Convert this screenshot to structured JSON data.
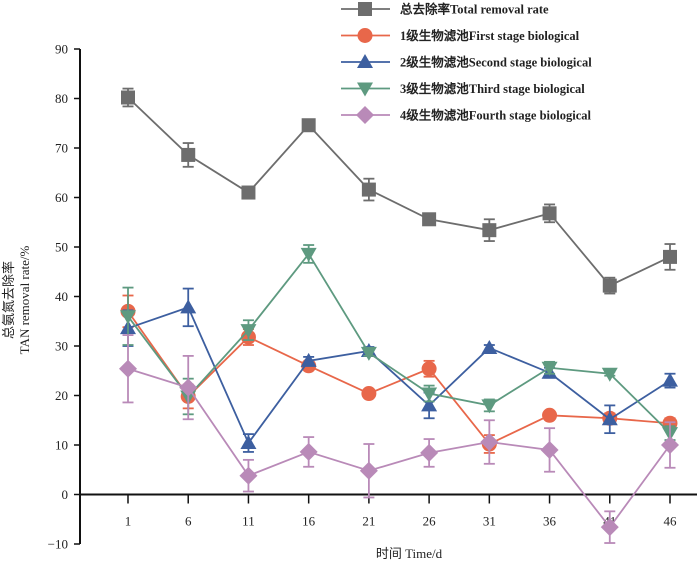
{
  "chart_data": {
    "type": "line",
    "title": "",
    "xlabel": "时间 Time/d",
    "ylabel_line1": "总氨氮去除率",
    "ylabel_line2": "TAN removal rate/%",
    "x": [
      1,
      6,
      11,
      16,
      21,
      26,
      31,
      36,
      41,
      46
    ],
    "x_tick_labels": [
      "1",
      "6",
      "11",
      "16",
      "21",
      "26",
      "31",
      "36",
      "41",
      "46"
    ],
    "ylim": [
      -10,
      90
    ],
    "y_ticks": [
      -10,
      0,
      10,
      20,
      30,
      40,
      50,
      60,
      70,
      80,
      90
    ],
    "grid": false,
    "legend_position": "top-right",
    "series": [
      {
        "name": "总去除率Total removal rate",
        "color": "#6d6d6d",
        "marker": "square",
        "values": [
          80.2,
          68.6,
          61.0,
          74.6,
          61.6,
          55.6,
          53.4,
          56.8,
          42.2,
          48.0
        ],
        "errors": [
          1.8,
          2.4,
          1.2,
          0.6,
          2.2,
          1.0,
          2.2,
          1.8,
          1.6,
          2.6
        ]
      },
      {
        "name": "1级生物滤池First stage biological",
        "color": "#e8674a",
        "marker": "circle",
        "values": [
          37.0,
          19.8,
          31.8,
          26.0,
          20.4,
          25.4,
          10.2,
          16.0,
          15.4,
          14.4
        ],
        "errors": [
          3.2,
          2.4,
          1.6,
          0.6,
          0.8,
          1.6,
          1.8,
          0.4,
          1.0,
          1.0
        ]
      },
      {
        "name": "2级生物滤池Second stage biological",
        "color": "#3d5fa0",
        "marker": "triangle-up",
        "values": [
          33.6,
          37.8,
          10.4,
          27.0,
          29.0,
          18.0,
          29.6,
          24.6,
          15.2,
          23.0
        ],
        "errors": [
          3.6,
          3.8,
          1.8,
          0.8,
          0.8,
          2.6,
          0.6,
          1.0,
          2.8,
          1.4
        ]
      },
      {
        "name": "3级生物滤池Third stage biological",
        "color": "#5e9a80",
        "marker": "triangle-down",
        "values": [
          36.0,
          19.8,
          33.2,
          48.6,
          28.6,
          20.4,
          18.0,
          25.6,
          24.4,
          12.4
        ],
        "errors": [
          5.8,
          3.6,
          2.0,
          1.8,
          0.6,
          1.6,
          1.2,
          1.2,
          0.4,
          1.4
        ]
      },
      {
        "name": "4级生物滤池Fourth stage biological",
        "color": "#b98ab8",
        "marker": "diamond",
        "values": [
          25.4,
          21.6,
          3.8,
          8.6,
          4.8,
          8.4,
          10.6,
          9.0,
          -6.6,
          10.0
        ],
        "errors": [
          6.8,
          6.4,
          3.2,
          3.0,
          5.4,
          2.8,
          4.4,
          4.4,
          3.2,
          4.6
        ]
      }
    ]
  }
}
